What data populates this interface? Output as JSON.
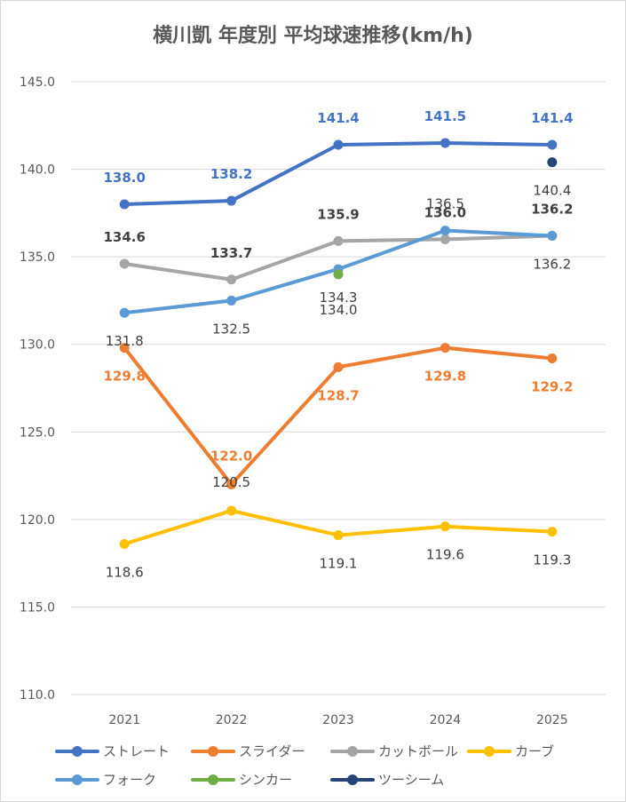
{
  "chart_data": {
    "type": "line",
    "title": "横川凱 年度別 平均球速推移(km/h)",
    "categories": [
      "2021",
      "2022",
      "2023",
      "2024",
      "2025"
    ],
    "ylim": [
      110,
      145
    ],
    "yticks": [
      "110.0",
      "115.0",
      "120.0",
      "125.0",
      "130.0",
      "135.0",
      "140.0",
      "145.0"
    ],
    "grid": true,
    "legend_position": "bottom",
    "series": [
      {
        "name": "ストレート",
        "color": "#4472c4",
        "values": [
          138.0,
          138.2,
          141.4,
          141.5,
          141.4
        ],
        "labels": [
          "138.0",
          "138.2",
          "141.4",
          "141.5",
          "141.4"
        ]
      },
      {
        "name": "スライダー",
        "color": "#ed7d31",
        "values": [
          129.8,
          122.0,
          128.7,
          129.8,
          129.2
        ],
        "labels": [
          "129.8",
          "122.0",
          "128.7",
          "129.8",
          "129.2"
        ]
      },
      {
        "name": "カットボール",
        "color": "#a5a5a5",
        "values": [
          134.6,
          133.7,
          135.9,
          136.0,
          136.2
        ],
        "labels": [
          "134.6",
          "133.7",
          "135.9",
          "136.0",
          "136.2"
        ]
      },
      {
        "name": "カーブ",
        "color": "#ffc000",
        "values": [
          118.6,
          120.5,
          119.1,
          119.6,
          119.3
        ],
        "labels": [
          "118.6",
          "120.5",
          "119.1",
          "119.6",
          "119.3"
        ]
      },
      {
        "name": "フォーク",
        "color": "#5b9bd5",
        "values": [
          131.8,
          132.5,
          134.3,
          136.5,
          136.2
        ],
        "labels": [
          "131.8",
          "132.5",
          "134.3",
          "136.5",
          "136.2"
        ]
      },
      {
        "name": "シンカー",
        "color": "#70ad47",
        "values": [
          null,
          null,
          134.0,
          null,
          null
        ],
        "labels": [
          null,
          null,
          "134.0",
          null,
          null
        ]
      },
      {
        "name": "ツーシーム",
        "color": "#264478",
        "values": [
          null,
          null,
          null,
          null,
          140.4
        ],
        "labels": [
          null,
          null,
          null,
          null,
          "140.4"
        ]
      }
    ]
  }
}
